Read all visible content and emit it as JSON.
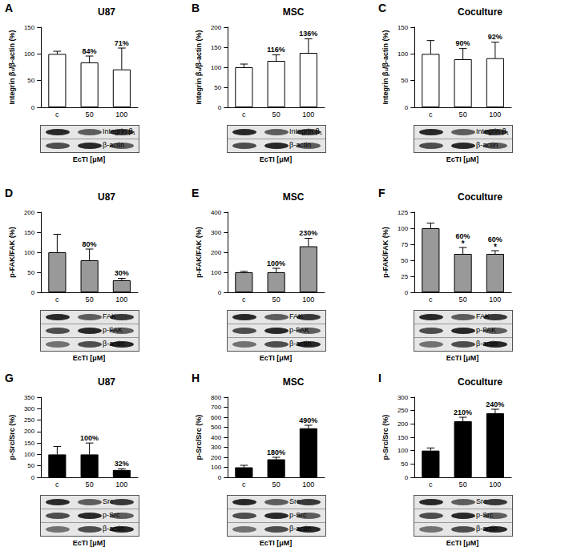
{
  "chart_data": [
    {
      "type": "bar",
      "panel": "A",
      "title": "U87",
      "y_label": "Integrin β₁/β-actin (%)",
      "x_label": "EcTI [μM]",
      "categories": [
        "c",
        "50",
        "100"
      ],
      "values": [
        100,
        84,
        71
      ],
      "errors": [
        5,
        12,
        40
      ],
      "value_labels": [
        null,
        "84%",
        "71%"
      ],
      "data_labels": true,
      "color": "#ffffff",
      "ylim": [
        0,
        150
      ],
      "yticks": [
        0,
        50,
        100,
        150
      ],
      "grid": false,
      "blots": [
        "Integrin β₁",
        "β-actin"
      ]
    },
    {
      "type": "bar",
      "panel": "B",
      "title": "MSC",
      "y_label": "Integrin β₁/β-actin (%)",
      "x_label": "EcTI [μM]",
      "categories": [
        "c",
        "50",
        "100"
      ],
      "values": [
        100,
        116,
        136
      ],
      "errors": [
        8,
        15,
        35
      ],
      "value_labels": [
        null,
        "116%",
        "136%"
      ],
      "data_labels": true,
      "color": "#ffffff",
      "ylim": [
        0,
        200
      ],
      "yticks": [
        0,
        50,
        100,
        150,
        200
      ],
      "grid": false,
      "blots": [
        "Integrin β₁",
        "β-actin"
      ]
    },
    {
      "type": "bar",
      "panel": "C",
      "title": "Coculture",
      "y_label": "Integrin β₁/β-actin (%)",
      "x_label": "EcTI [μM]",
      "categories": [
        "c",
        "50",
        "100"
      ],
      "values": [
        100,
        90,
        92
      ],
      "errors": [
        25,
        20,
        30
      ],
      "value_labels": [
        null,
        "90%",
        "92%"
      ],
      "data_labels": true,
      "color": "#ffffff",
      "ylim": [
        0,
        150
      ],
      "yticks": [
        0,
        50,
        100,
        150
      ],
      "grid": false,
      "blots": [
        "Integrin β₁",
        "β-actin"
      ]
    },
    {
      "type": "bar",
      "panel": "D",
      "title": "U87",
      "y_label": "p-FAK/FAK (%)",
      "x_label": "EcTI [μM]",
      "categories": [
        "c",
        "50",
        "100"
      ],
      "values": [
        100,
        80,
        30
      ],
      "errors": [
        45,
        28,
        5
      ],
      "value_labels": [
        null,
        "80%",
        "30%"
      ],
      "data_labels": true,
      "color": "#999999",
      "ylim": [
        0,
        200
      ],
      "yticks": [
        0,
        50,
        100,
        150,
        200
      ],
      "grid": false,
      "blots": [
        "FAK",
        "p-FAK",
        "β-actin"
      ]
    },
    {
      "type": "bar",
      "panel": "E",
      "title": "MSC",
      "y_label": "p-FAK/FAK (%)",
      "x_label": "EcTI [μM]",
      "categories": [
        "c",
        "50",
        "100"
      ],
      "values": [
        100,
        100,
        230
      ],
      "errors": [
        5,
        20,
        40
      ],
      "value_labels": [
        null,
        "100%",
        "230%"
      ],
      "data_labels": true,
      "color": "#999999",
      "ylim": [
        0,
        400
      ],
      "yticks": [
        0,
        100,
        200,
        300,
        400
      ],
      "grid": false,
      "blots": [
        "FAK",
        "p-FAK",
        "β-actin"
      ]
    },
    {
      "type": "bar",
      "panel": "F",
      "title": "Coculture",
      "y_label": "p-FAK/FAK (%)",
      "x_label": "EcTI [μM]",
      "categories": [
        "c",
        "50",
        "100"
      ],
      "values": [
        100,
        60,
        60
      ],
      "errors": [
        8,
        10,
        5
      ],
      "value_labels": [
        null,
        "60%",
        "60%"
      ],
      "significance": [
        null,
        "*",
        "*"
      ],
      "data_labels": true,
      "color": "#999999",
      "ylim": [
        0,
        125
      ],
      "yticks": [
        0,
        25,
        50,
        75,
        100,
        125
      ],
      "grid": false,
      "blots": [
        "FAK",
        "p-FAK",
        "β-actin"
      ]
    },
    {
      "type": "bar",
      "panel": "G",
      "title": "U87",
      "y_label": "p-Src/Src (%)",
      "x_label": "EcTI [μM]",
      "categories": [
        "c",
        "50",
        "100"
      ],
      "values": [
        100,
        100,
        32
      ],
      "errors": [
        35,
        50,
        5
      ],
      "value_labels": [
        null,
        "100%",
        "32%"
      ],
      "data_labels": true,
      "color": "#000000",
      "ylim": [
        0,
        350
      ],
      "yticks": [
        0,
        50,
        100,
        150,
        200,
        250,
        300,
        350
      ],
      "grid": false,
      "blots": [
        "Src",
        "p-Src",
        "β-actin"
      ]
    },
    {
      "type": "bar",
      "panel": "H",
      "title": "MSC",
      "y_label": "p-Src/Src (%)",
      "x_label": "EcTI [μM]",
      "categories": [
        "c",
        "50",
        "100"
      ],
      "values": [
        100,
        180,
        490
      ],
      "errors": [
        20,
        20,
        30
      ],
      "value_labels": [
        null,
        "180%",
        "490%"
      ],
      "data_labels": true,
      "color": "#000000",
      "ylim": [
        0,
        800
      ],
      "yticks": [
        0,
        100,
        200,
        300,
        400,
        500,
        600,
        700,
        800
      ],
      "grid": false,
      "blots": [
        "Src",
        "p-Src",
        "β-actin"
      ]
    },
    {
      "type": "bar",
      "panel": "I",
      "title": "Coculture",
      "y_label": "p-Src/Src (%)",
      "x_label": "EcTI [μM]",
      "categories": [
        "c",
        "50",
        "100"
      ],
      "values": [
        100,
        210,
        240
      ],
      "errors": [
        10,
        15,
        15
      ],
      "value_labels": [
        null,
        "210%",
        "240%"
      ],
      "data_labels": true,
      "color": "#000000",
      "ylim": [
        0,
        300
      ],
      "yticks": [
        0,
        50,
        100,
        150,
        200,
        250,
        300
      ],
      "grid": false,
      "blots": [
        "Src",
        "p-Src",
        "β-actin"
      ]
    }
  ]
}
